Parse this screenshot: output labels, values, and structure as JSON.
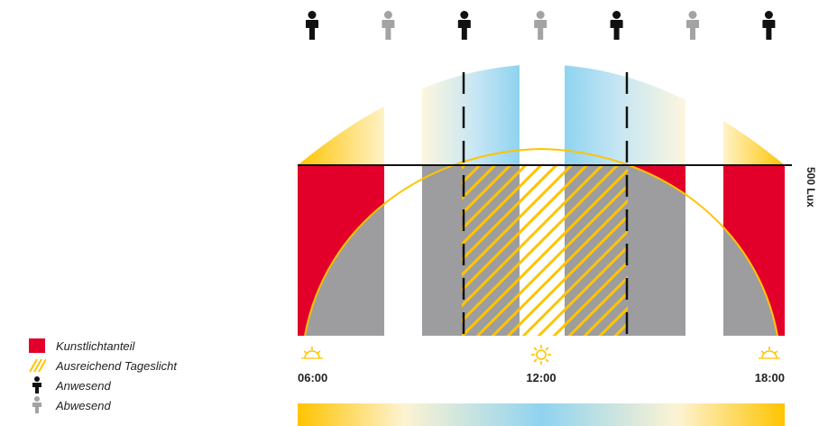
{
  "threshold_label": "500 Lux",
  "times": [
    {
      "label": "06:00",
      "sun": "sunrise-icon"
    },
    {
      "label": "12:00",
      "sun": "sun-icon"
    },
    {
      "label": "18:00",
      "sun": "sunset-icon"
    }
  ],
  "legend": [
    {
      "label": "Kunstlichtanteil",
      "icon": "red-square-icon"
    },
    {
      "label": "Ausreichend Tageslicht",
      "icon": "yellow-hatch-icon"
    },
    {
      "label": "Anwesend",
      "icon": "person-present-icon"
    },
    {
      "label": "Abwesend",
      "icon": "person-absent-icon"
    }
  ],
  "people": [
    {
      "state": "present"
    },
    {
      "state": "absent"
    },
    {
      "state": "present"
    },
    {
      "state": "absent"
    },
    {
      "state": "present"
    },
    {
      "state": "absent"
    },
    {
      "state": "present"
    }
  ],
  "colors": {
    "artificial": "#e2002a",
    "gray": "#9d9d9f",
    "daylight": "#ffc400",
    "sky": "#8fd3f0",
    "present": "#111111",
    "absent": "#a3a3a3"
  }
}
